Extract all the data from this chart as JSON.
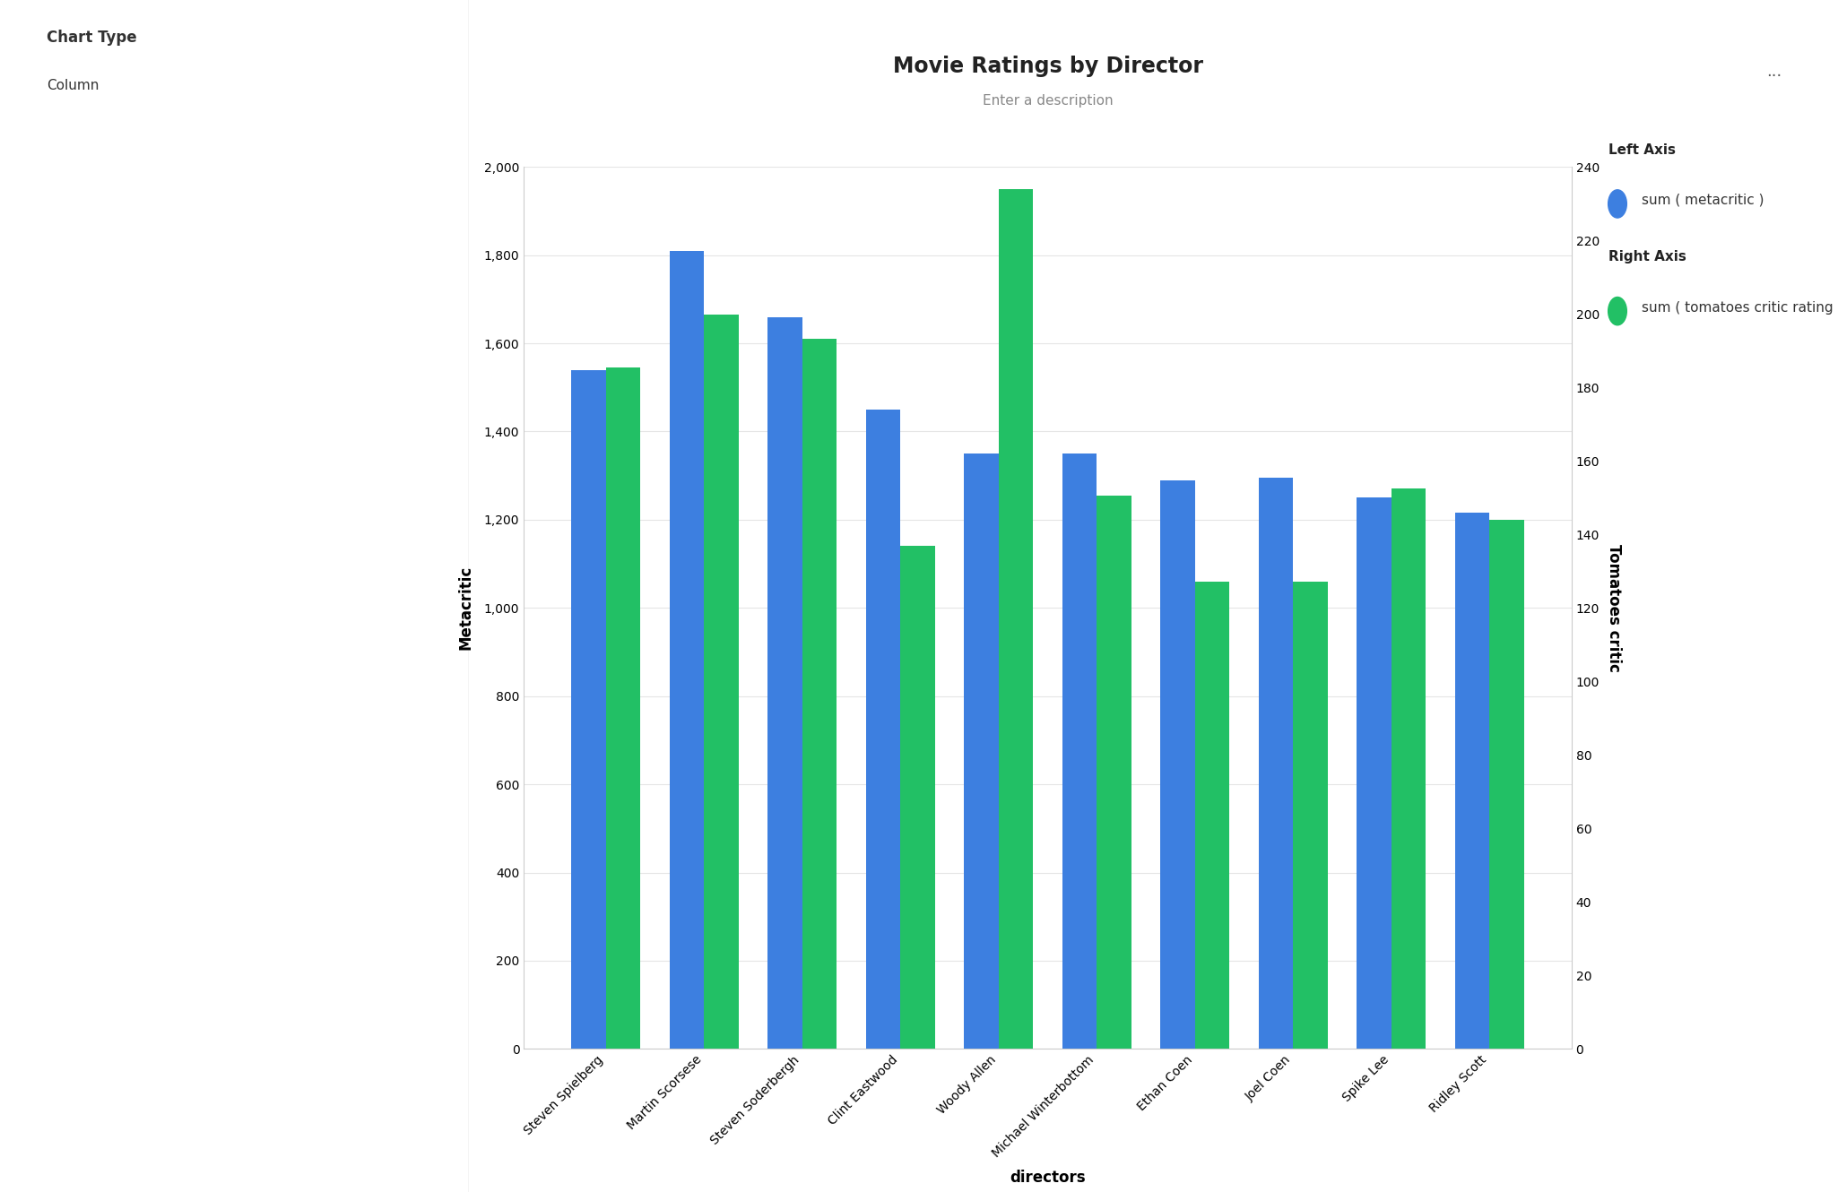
{
  "title": "Movie Ratings by Director",
  "subtitle": "Enter a description",
  "xlabel": "directors",
  "ylabel_left": "Metacritic",
  "ylabel_right": "Tomatoes critic",
  "directors": [
    "Steven Spielberg",
    "Martin Scorsese",
    "Steven Soderbergh",
    "Clint Eastwood",
    "Woody Allen",
    "Michael Winterbottom",
    "Ethan Coen",
    "Joel Coen",
    "Spike Lee",
    "Ridley Scott"
  ],
  "metacritic": [
    1540,
    1810,
    1660,
    1450,
    1350,
    1350,
    1290,
    1295,
    1250,
    1215
  ],
  "tomatoes": [
    1545,
    1665,
    1610,
    1140,
    1950,
    1255,
    1060,
    1060,
    1270,
    1200
  ],
  "left_ylim": [
    0,
    2000
  ],
  "right_ylim": [
    0,
    240
  ],
  "left_yticks": [
    0,
    200,
    400,
    600,
    800,
    1000,
    1200,
    1400,
    1600,
    1800,
    2000
  ],
  "right_yticks": [
    0,
    20,
    40,
    60,
    80,
    100,
    120,
    140,
    160,
    180,
    200,
    220,
    240
  ],
  "blue_color": "#3d7fe0",
  "green_color": "#22c065",
  "background_color": "#ffffff",
  "panel_color": "#f0f0f0",
  "grid_color": "#e5e5e5",
  "legend_left_label": "sum ( metacritic )",
  "legend_right_label": "sum ( tomatoes critic rating )",
  "legend_left_title": "Left Axis",
  "legend_right_title": "Right Axis",
  "bar_width": 0.35,
  "title_fontsize": 17,
  "subtitle_fontsize": 11,
  "axis_label_fontsize": 12,
  "tick_fontsize": 10,
  "legend_fontsize": 11
}
